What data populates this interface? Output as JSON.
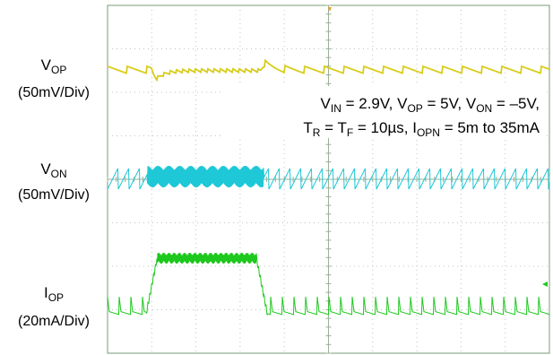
{
  "chart_data": {
    "type": "line",
    "annotation": {
      "line1": {
        "vin_label": "V",
        "vin_sub": "IN",
        "vin_val": " = 2.9V, ",
        "vop_label": "V",
        "vop_sub": "OP",
        "vop_val": " = 5V, ",
        "von_label": "V",
        "von_sub": "ON",
        "von_val": " = –5V,"
      },
      "line2": {
        "tr_label": "T",
        "tr_sub": "R",
        "eq": " = ",
        "tf_label": "T",
        "tf_sub": "F",
        "tf_val": " = 10µs, ",
        "iopn_label": "I",
        "iopn_sub": "OPN",
        "iopn_val": " = 5m to 35mA"
      }
    },
    "channels": [
      {
        "name_main": "V",
        "name_sub": "OP",
        "scale": "(50mV/Div)",
        "color": "#d8cc1a"
      },
      {
        "name_main": "V",
        "name_sub": "ON",
        "scale": "(50mV/Div)",
        "color": "#1ec8d6"
      },
      {
        "name_main": "I",
        "name_sub": "OP",
        "scale": "(20mA/Div)",
        "color": "#1ec81e"
      }
    ],
    "grid": true,
    "x_divisions": 10,
    "y_divisions": 8,
    "load_step": {
      "low_mA": 5,
      "high_mA": 35,
      "step_up_div": 1.0,
      "step_down_div": 3.45
    }
  }
}
